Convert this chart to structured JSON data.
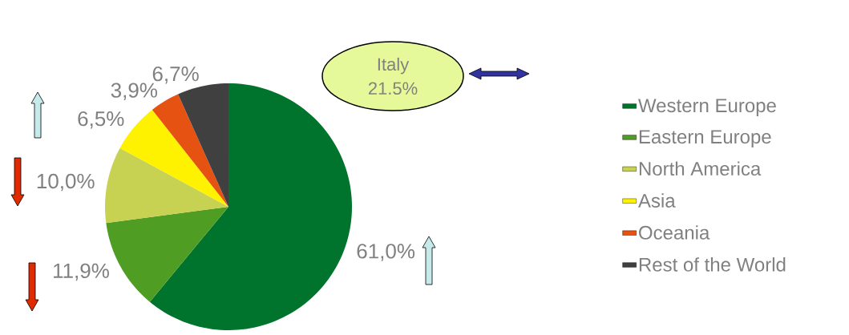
{
  "chart_data": {
    "type": "pie",
    "categories": [
      "Western Europe",
      "Eastern Europe",
      "North America",
      "Asia",
      "Oceania",
      "Rest of the World"
    ],
    "values": [
      61.0,
      11.9,
      10.0,
      6.5,
      3.9,
      6.7
    ],
    "colors": [
      "#00732d",
      "#4f9e23",
      "#c8d252",
      "#fff200",
      "#e65212",
      "#404040"
    ],
    "value_labels": [
      "61,0%",
      "11,9%",
      "10,0%",
      "6,5%",
      "3,9%",
      "6,7%"
    ],
    "legend": "right",
    "annotations": [
      "Italy 21.5%"
    ]
  }
}
